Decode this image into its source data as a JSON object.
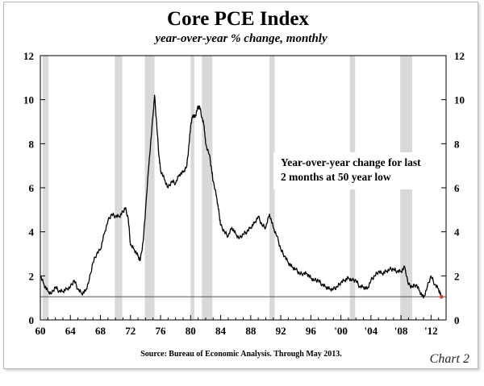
{
  "chart_data": {
    "type": "line",
    "title": "Core PCE Index",
    "subtitle": "year-over-year % change, monthly",
    "xlabel": "",
    "ylabel": "",
    "xlim": [
      1960,
      2014
    ],
    "ylim": [
      0,
      12
    ],
    "x_ticks": [
      1960,
      1964,
      1968,
      1972,
      1976,
      1980,
      1984,
      1988,
      1992,
      1996,
      2000,
      2004,
      2008,
      2012
    ],
    "x_tick_labels": [
      "60",
      "64",
      "68",
      "72",
      "76",
      "80",
      "84",
      "88",
      "92",
      "96",
      "'00",
      "'04",
      "'08",
      "'12"
    ],
    "y_ticks": [
      0,
      2,
      4,
      6,
      8,
      10,
      12
    ],
    "y_tick_labels": [
      "0",
      "2",
      "4",
      "6",
      "8",
      "10",
      "12"
    ],
    "reference_line": 1.05,
    "recessions": [
      [
        1960.3,
        1961.1
      ],
      [
        1969.9,
        1970.9
      ],
      [
        1973.9,
        1975.2
      ],
      [
        1980.0,
        1980.5
      ],
      [
        1981.5,
        1982.9
      ],
      [
        1990.5,
        1991.2
      ],
      [
        2001.2,
        2001.9
      ],
      [
        2007.9,
        2009.5
      ]
    ],
    "series": [
      {
        "name": "Core PCE Index, YoY % change",
        "points": [
          [
            1960.0,
            2.0
          ],
          [
            1960.5,
            1.6
          ],
          [
            1961.0,
            1.3
          ],
          [
            1961.5,
            1.2
          ],
          [
            1962.0,
            1.5
          ],
          [
            1962.5,
            1.3
          ],
          [
            1963.0,
            1.3
          ],
          [
            1963.5,
            1.4
          ],
          [
            1964.0,
            1.5
          ],
          [
            1964.5,
            1.8
          ],
          [
            1965.0,
            1.4
          ],
          [
            1965.5,
            1.2
          ],
          [
            1966.0,
            1.3
          ],
          [
            1966.5,
            1.8
          ],
          [
            1967.0,
            2.6
          ],
          [
            1967.5,
            3.0
          ],
          [
            1968.0,
            3.2
          ],
          [
            1968.5,
            3.9
          ],
          [
            1969.0,
            4.5
          ],
          [
            1969.5,
            4.8
          ],
          [
            1970.0,
            4.7
          ],
          [
            1970.5,
            4.7
          ],
          [
            1971.0,
            4.9
          ],
          [
            1971.3,
            5.1
          ],
          [
            1971.7,
            4.6
          ],
          [
            1972.0,
            3.4
          ],
          [
            1972.5,
            3.2
          ],
          [
            1973.0,
            2.9
          ],
          [
            1973.3,
            2.7
          ],
          [
            1973.7,
            3.6
          ],
          [
            1974.0,
            5.0
          ],
          [
            1974.5,
            7.3
          ],
          [
            1975.0,
            9.3
          ],
          [
            1975.2,
            10.2
          ],
          [
            1975.5,
            8.8
          ],
          [
            1975.8,
            7.4
          ],
          [
            1976.0,
            6.8
          ],
          [
            1976.5,
            6.4
          ],
          [
            1977.0,
            6.0
          ],
          [
            1977.5,
            6.3
          ],
          [
            1978.0,
            6.2
          ],
          [
            1978.5,
            6.6
          ],
          [
            1979.0,
            6.7
          ],
          [
            1979.5,
            7.0
          ],
          [
            1979.8,
            8.0
          ],
          [
            1980.0,
            8.8
          ],
          [
            1980.3,
            9.3
          ],
          [
            1980.6,
            9.2
          ],
          [
            1980.9,
            9.6
          ],
          [
            1981.2,
            9.7
          ],
          [
            1981.5,
            9.2
          ],
          [
            1981.8,
            8.8
          ],
          [
            1982.0,
            8.0
          ],
          [
            1982.5,
            7.5
          ],
          [
            1982.8,
            6.8
          ],
          [
            1983.0,
            6.3
          ],
          [
            1983.5,
            5.5
          ],
          [
            1983.8,
            4.8
          ],
          [
            1984.0,
            4.3
          ],
          [
            1984.5,
            4.0
          ],
          [
            1985.0,
            3.8
          ],
          [
            1985.5,
            4.2
          ],
          [
            1986.0,
            3.9
          ],
          [
            1986.5,
            3.7
          ],
          [
            1987.0,
            3.9
          ],
          [
            1987.5,
            4.0
          ],
          [
            1988.0,
            4.2
          ],
          [
            1988.5,
            4.4
          ],
          [
            1989.0,
            4.7
          ],
          [
            1989.5,
            4.3
          ],
          [
            1990.0,
            4.2
          ],
          [
            1990.5,
            4.8
          ],
          [
            1991.0,
            4.2
          ],
          [
            1991.5,
            3.8
          ],
          [
            1992.0,
            3.2
          ],
          [
            1992.5,
            2.9
          ],
          [
            1993.0,
            2.6
          ],
          [
            1993.5,
            2.4
          ],
          [
            1994.0,
            2.3
          ],
          [
            1994.5,
            2.1
          ],
          [
            1995.0,
            2.1
          ],
          [
            1995.5,
            2.1
          ],
          [
            1996.0,
            1.9
          ],
          [
            1996.5,
            1.8
          ],
          [
            1997.0,
            1.8
          ],
          [
            1997.5,
            1.6
          ],
          [
            1998.0,
            1.5
          ],
          [
            1998.5,
            1.4
          ],
          [
            1999.0,
            1.4
          ],
          [
            1999.5,
            1.5
          ],
          [
            2000.0,
            1.7
          ],
          [
            2000.5,
            1.8
          ],
          [
            2001.0,
            1.9
          ],
          [
            2001.5,
            1.8
          ],
          [
            2002.0,
            1.8
          ],
          [
            2002.5,
            1.5
          ],
          [
            2003.0,
            1.5
          ],
          [
            2003.5,
            1.4
          ],
          [
            2004.0,
            1.8
          ],
          [
            2004.5,
            2.0
          ],
          [
            2005.0,
            2.2
          ],
          [
            2005.5,
            2.1
          ],
          [
            2006.0,
            2.2
          ],
          [
            2006.5,
            2.3
          ],
          [
            2007.0,
            2.3
          ],
          [
            2007.5,
            2.2
          ],
          [
            2008.0,
            2.2
          ],
          [
            2008.5,
            2.4
          ],
          [
            2009.0,
            1.6
          ],
          [
            2009.5,
            1.5
          ],
          [
            2010.0,
            1.6
          ],
          [
            2010.5,
            1.3
          ],
          [
            2011.0,
            1.0
          ],
          [
            2011.5,
            1.5
          ],
          [
            2012.0,
            2.0
          ],
          [
            2012.5,
            1.6
          ],
          [
            2013.0,
            1.4
          ],
          [
            2013.3,
            1.1
          ],
          [
            2013.4,
            1.05
          ]
        ]
      }
    ],
    "annotations": [
      "Year-over-year change for last",
      "2 months at 50 year low"
    ],
    "source": "Source: Bureau of Economic Analysis. Through May 2013.",
    "colors": {
      "line": "#000000",
      "recession": "#d9d9d9",
      "reference": "#555555",
      "latest_point": "#e8342c"
    }
  },
  "chart_label": "Chart 2"
}
